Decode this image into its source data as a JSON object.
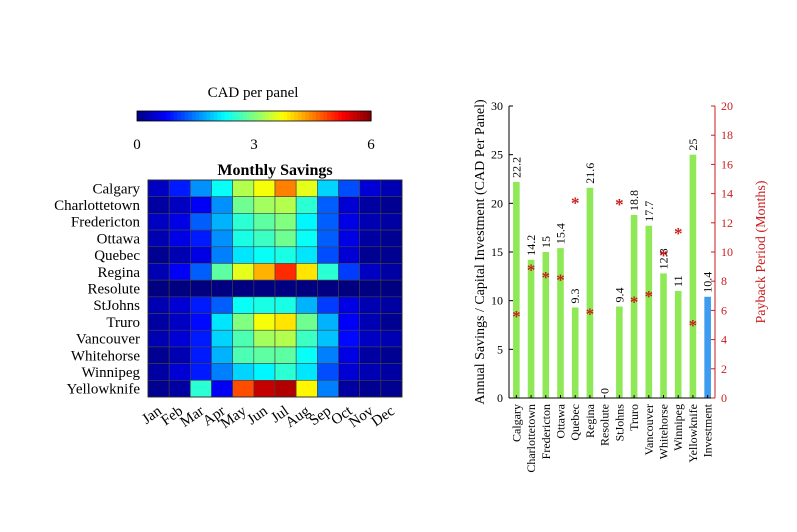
{
  "chart_data": [
    {
      "type": "heatmap",
      "title": "Monthly Savings",
      "colorbar_label": "CAD per panel",
      "colorbar_ticks": [
        "0",
        "3",
        "6"
      ],
      "value_range": [
        0,
        6
      ],
      "colormap": "jet",
      "rows": [
        "Calgary",
        "Charlottetown",
        "Fredericton",
        "Ottawa",
        "Quebec",
        "Regina",
        "Resolute",
        "StJohns",
        "Truro",
        "Vancouver",
        "Whitehorse",
        "Winnipeg",
        "Yellowknife"
      ],
      "columns": [
        "Jan",
        "Feb",
        "Mar",
        "Apr",
        "May",
        "Jun",
        "Jul",
        "Aug",
        "Sep",
        "Oct",
        "Nov",
        "Dec"
      ],
      "values": [
        [
          0.4,
          0.9,
          1.6,
          2.3,
          3.3,
          3.7,
          4.5,
          3.6,
          2.0,
          1.2,
          0.5,
          0.3
        ],
        [
          0.2,
          0.4,
          0.7,
          1.6,
          2.9,
          3.2,
          3.3,
          2.5,
          1.3,
          0.5,
          0.2,
          0.1
        ],
        [
          0.4,
          0.6,
          1.3,
          1.8,
          2.5,
          2.8,
          3.0,
          2.2,
          1.3,
          0.6,
          0.3,
          0.2
        ],
        [
          0.3,
          0.6,
          0.9,
          1.6,
          2.4,
          2.6,
          2.9,
          2.3,
          1.3,
          0.6,
          0.2,
          0.1
        ],
        [
          0.1,
          0.3,
          0.6,
          1.5,
          2.1,
          2.3,
          2.4,
          2.1,
          1.2,
          0.5,
          0.1,
          0.1
        ],
        [
          0.3,
          0.7,
          1.3,
          2.8,
          3.6,
          4.2,
          5.0,
          3.9,
          2.5,
          1.1,
          0.4,
          0.2
        ],
        [
          0.0,
          0.0,
          0.0,
          0.0,
          0.0,
          0.0,
          0.0,
          0.0,
          0.0,
          0.0,
          0.0,
          0.0
        ],
        [
          0.3,
          0.5,
          0.9,
          1.3,
          2.3,
          2.4,
          2.4,
          1.8,
          1.1,
          0.6,
          0.3,
          0.2
        ],
        [
          0.2,
          0.4,
          0.8,
          2.1,
          3.0,
          3.7,
          3.9,
          2.9,
          1.8,
          0.7,
          0.3,
          0.1
        ],
        [
          0.3,
          0.5,
          0.9,
          2.0,
          2.7,
          3.2,
          3.3,
          2.6,
          1.9,
          0.8,
          0.4,
          0.3
        ],
        [
          0.1,
          0.3,
          0.9,
          1.8,
          2.7,
          2.8,
          2.8,
          2.3,
          1.5,
          0.6,
          0.2,
          0.1
        ],
        [
          0.2,
          0.5,
          0.9,
          1.5,
          2.0,
          2.2,
          2.5,
          2.1,
          1.2,
          0.5,
          0.3,
          0.2
        ],
        [
          0.1,
          0.2,
          2.5,
          0.7,
          4.8,
          5.6,
          5.7,
          3.8,
          1.5,
          0.2,
          0.1,
          0.1
        ]
      ]
    },
    {
      "type": "bar",
      "categories": [
        "Calgary",
        "Charlottetown",
        "Fredericton",
        "Ottawa",
        "Quebec",
        "Regina",
        "Resolute",
        "StJohns",
        "Truro",
        "Vancouver",
        "Whitehorse",
        "Winnipeg",
        "Yellowknife",
        "Investment"
      ],
      "series": [
        {
          "name": "Annual Savings / Capital Investment",
          "axis": "left",
          "values": [
            22.2,
            14.2,
            15,
            15.4,
            9.3,
            21.6,
            0,
            9.4,
            18.8,
            17.7,
            12.8,
            11,
            25,
            10.4
          ],
          "data_labels": [
            "22.2",
            "14.2",
            "15",
            "15.4",
            "9.3",
            "21.6",
            "0",
            "9.4",
            "18.8",
            "17.7",
            "12.8",
            "11",
            "25",
            "10.4"
          ],
          "colors": [
            "#8fe956",
            "#8fe956",
            "#8fe956",
            "#8fe956",
            "#8fe956",
            "#8fe956",
            "#8fe956",
            "#8fe956",
            "#8fe956",
            "#8fe956",
            "#8fe956",
            "#8fe956",
            "#8fe956",
            "#3e9cf0"
          ]
        },
        {
          "name": "Payback Period",
          "type": "scatter",
          "marker": "*",
          "axis": "right",
          "color": "#c81e1e",
          "values": [
            5.6,
            8.8,
            8.3,
            8.1,
            13.4,
            5.8,
            null,
            13.3,
            6.6,
            7.0,
            9.8,
            11.3,
            5.0,
            null
          ]
        }
      ],
      "ylabel": "Annual Savings / Capital Investment (CAD Per Panel)",
      "ylim": [
        0,
        30
      ],
      "yticks": [
        "0",
        "5",
        "10",
        "15",
        "20",
        "25",
        "30"
      ],
      "y2label": "Payback Period (Months)",
      "y2lim": [
        0,
        20
      ],
      "y2ticks": [
        "0",
        "2",
        "4",
        "6",
        "8",
        "10",
        "12",
        "14",
        "16",
        "18",
        "20"
      ],
      "axis_colors": {
        "left": "#000000",
        "right": "#c81e1e"
      }
    }
  ]
}
